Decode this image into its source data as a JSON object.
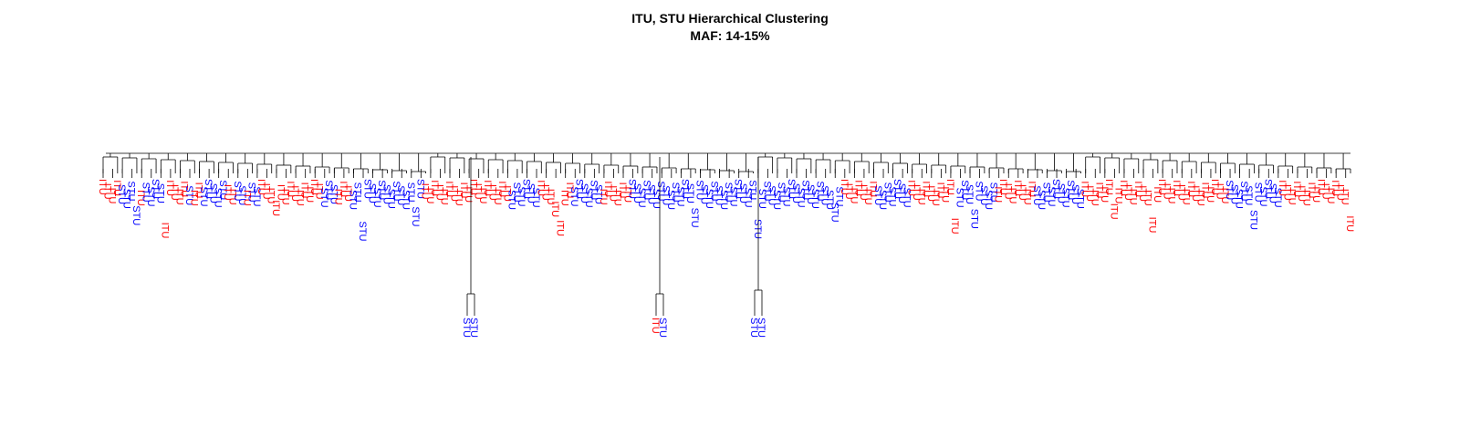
{
  "title": "ITU, STU Hierarchical Clustering",
  "subtitle": "MAF: 14-15%",
  "colors": {
    "ITU": "#ff0000",
    "STU": "#0000ff",
    "branch": "#000000"
  },
  "chart_data": {
    "type": "dendrogram",
    "groups": [
      "ITU",
      "STU"
    ],
    "leaf_sequence": "IIIISSSSISSSSIIIIISIISSSSSIISSISSIIIIIIIIIIIIISSSIIISSSSSSSSSSSSSSSIIIIIIIIIIIIIIIIIISSSSSSIIIIIIISSSSSSIIIIIISSSSSSSSSSSSSSSSSSSSSSSSSSSSSSSSSSSSSSSSSSSSIIIIIIISSSSSSSIIIIIIIIIISSSSSSSSIIIIIIIISSSSSSSSSSIIIIIIIIIIIIIIIIIIIIIIIIIIIIIISSSSSSSSSSSIIIIIIIIIIIIIII",
    "outlier_pairs": [
      {
        "labels": [
          "STU",
          "STU"
        ]
      },
      {
        "labels": [
          "ITU",
          "STU"
        ]
      },
      {
        "labels": [
          "STU",
          "STU"
        ]
      }
    ]
  }
}
